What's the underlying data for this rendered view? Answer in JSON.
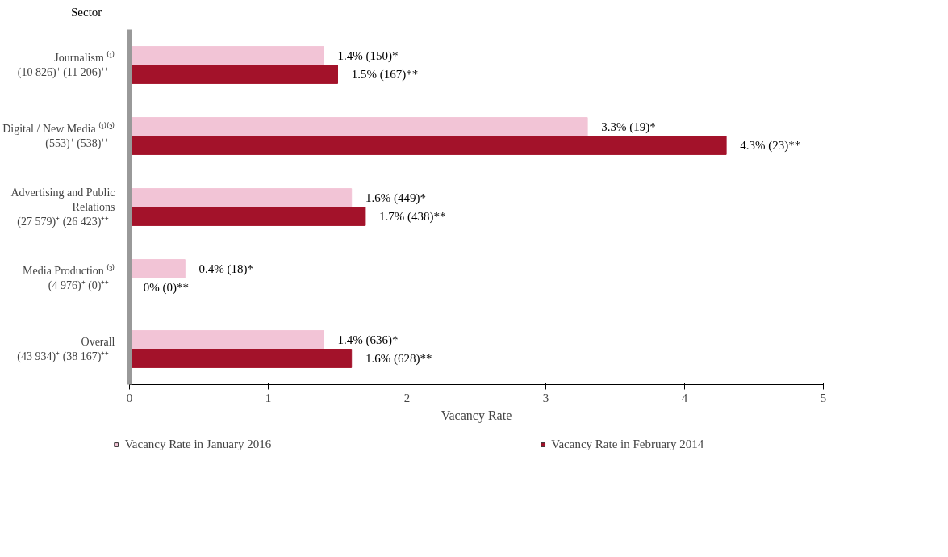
{
  "chart_data": {
    "type": "bar",
    "orientation": "horizontal",
    "ylabel": "Sector",
    "xlabel": "Vacancy Rate",
    "categories": [
      "Journalism ⁽¹⁾\n(10 826)⁺   (11 206)⁺⁺",
      "Digital / New Media ⁽¹⁾⁽²⁾\n(553)⁺   (538)⁺⁺",
      "Advertising and Public\nRelations\n(27 579)⁺   (26 423)⁺⁺",
      "Media Production ⁽³⁾\n(4 976)⁺   (0)⁺⁺",
      "Overall\n(43 934)⁺   (38 167)⁺⁺"
    ],
    "series": [
      {
        "name": "Vacancy Rate in January 2016",
        "color": "#f2c4d6",
        "values": [
          1.4,
          3.3,
          1.6,
          0.4,
          1.4
        ],
        "value_labels": [
          "1.4% (150)*",
          "3.3% (19)*",
          "1.6% (449)*",
          "0.4% (18)*",
          "1.4% (636)*"
        ]
      },
      {
        "name": "Vacancy Rate in February 2014",
        "color": "#a3122a",
        "values": [
          1.5,
          4.3,
          1.7,
          0,
          1.6
        ],
        "value_labels": [
          "1.5% (167)**",
          "4.3% (23)**",
          "1.7% (438)**",
          "0% (0)**",
          "1.6% (628)**"
        ]
      }
    ],
    "xlim": [
      0,
      5
    ],
    "xticks": [
      0,
      1,
      2,
      3,
      4,
      5
    ],
    "grid": false,
    "legend": "bottom"
  }
}
